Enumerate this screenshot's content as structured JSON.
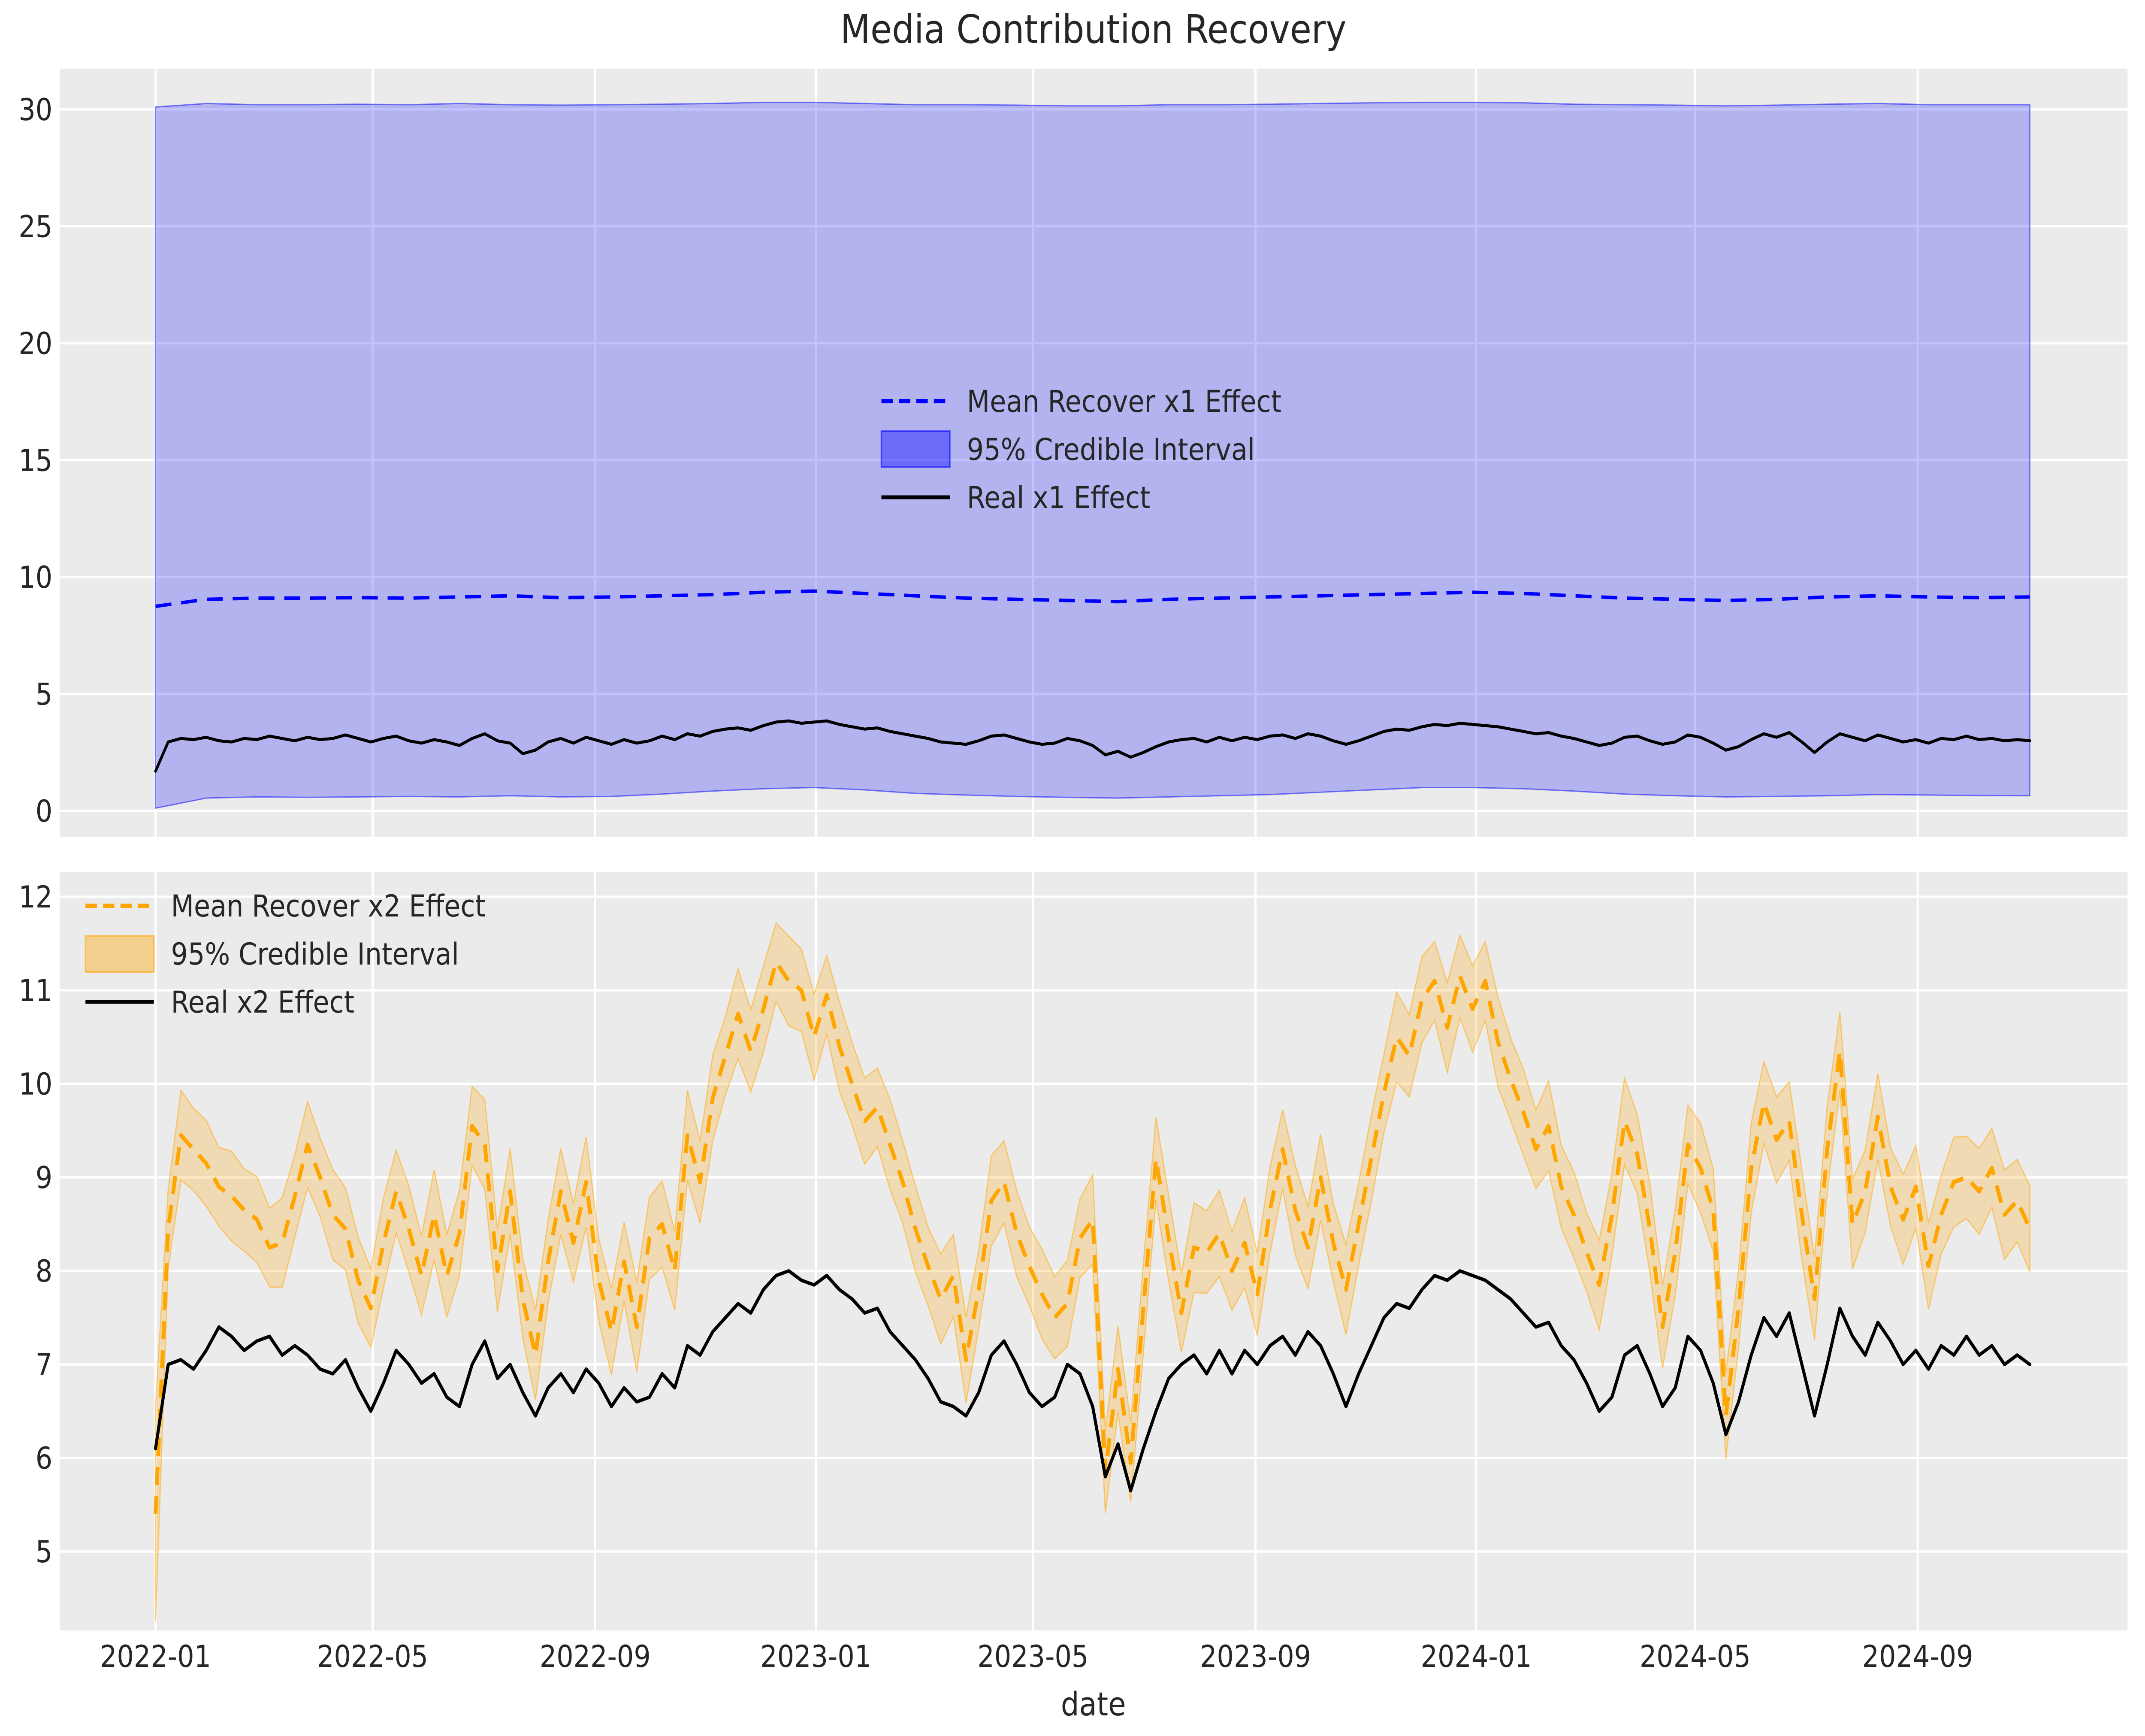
{
  "title": "Media Contribution Recovery",
  "xlabel": "date",
  "colors": {
    "figure_bg": "#ffffff",
    "axes_bg": "#ebebeb",
    "grid": "#ffffff",
    "text": "#262626",
    "x1_accent": "#0000ff",
    "x2_accent": "#ffa500",
    "real_line": "#000000"
  },
  "x_axis": {
    "tick_days": [
      0,
      120,
      243,
      365,
      485,
      608,
      730,
      851,
      974
    ],
    "tick_labels": [
      "2022-01",
      "2022-05",
      "2022-09",
      "2023-01",
      "2023-05",
      "2023-09",
      "2024-01",
      "2024-05",
      "2024-09"
    ],
    "start_date": "2022-01-01",
    "end_date": "2024-11-02"
  },
  "chart_data": [
    {
      "type": "line",
      "panel": "top",
      "ylim": [
        -1.1,
        31.74
      ],
      "y_ticks": [
        0,
        5,
        10,
        15,
        20,
        25,
        30
      ],
      "y_tick_labels": [
        "0",
        "5",
        "10",
        "15",
        "20",
        "25",
        "30"
      ],
      "grid": true,
      "legend_position": "center",
      "legend": [
        {
          "label": "Mean Recover x1 Effect",
          "style": "dashed",
          "color": "#0000ff"
        },
        {
          "label": "95% Credible Interval",
          "style": "patch",
          "color": "#0000ff"
        },
        {
          "label": "Real x1 Effect",
          "style": "solid",
          "color": "#000000"
        }
      ],
      "series": [
        {
          "name": "Mean Recover x1 Effect",
          "role": "mean",
          "style": "dashed",
          "color": "#0000ff",
          "start_day": 0,
          "step_days": 28,
          "values": [
            8.75,
            9.05,
            9.1,
            9.1,
            9.12,
            9.1,
            9.15,
            9.2,
            9.12,
            9.15,
            9.2,
            9.25,
            9.35,
            9.4,
            9.3,
            9.2,
            9.1,
            9.05,
            9.0,
            8.95,
            9.05,
            9.1,
            9.15,
            9.2,
            9.25,
            9.3,
            9.35,
            9.3,
            9.2,
            9.1,
            9.05,
            9.0,
            9.05,
            9.15,
            9.2,
            9.15,
            9.12,
            9.15
          ]
        },
        {
          "name": "95% Credible Interval upper",
          "role": "band_upper",
          "start_day": 0,
          "step_days": 28,
          "values": [
            30.1,
            30.25,
            30.2,
            30.2,
            30.22,
            30.2,
            30.25,
            30.2,
            30.18,
            30.2,
            30.22,
            30.25,
            30.3,
            30.3,
            30.25,
            30.2,
            30.2,
            30.18,
            30.15,
            30.15,
            30.2,
            30.2,
            30.22,
            30.25,
            30.28,
            30.3,
            30.3,
            30.28,
            30.22,
            30.2,
            30.18,
            30.15,
            30.18,
            30.22,
            30.25,
            30.2,
            30.2,
            30.2
          ]
        },
        {
          "name": "95% Credible Interval lower",
          "role": "band_lower",
          "start_day": 0,
          "step_days": 28,
          "values": [
            0.12,
            0.55,
            0.6,
            0.58,
            0.6,
            0.62,
            0.6,
            0.65,
            0.6,
            0.62,
            0.72,
            0.85,
            0.95,
            1.0,
            0.9,
            0.75,
            0.68,
            0.62,
            0.58,
            0.55,
            0.6,
            0.65,
            0.7,
            0.8,
            0.9,
            1.0,
            1.0,
            0.95,
            0.85,
            0.72,
            0.65,
            0.6,
            0.62,
            0.65,
            0.7,
            0.68,
            0.66,
            0.65
          ]
        },
        {
          "name": "Real x1 Effect",
          "role": "real",
          "style": "solid",
          "color": "#000000",
          "start_day": 0,
          "step_days": 7,
          "values": [
            1.7,
            2.95,
            3.1,
            3.05,
            3.15,
            3.0,
            2.95,
            3.1,
            3.05,
            3.2,
            3.1,
            3.0,
            3.15,
            3.05,
            3.1,
            3.25,
            3.1,
            2.95,
            3.1,
            3.2,
            3.0,
            2.9,
            3.05,
            2.95,
            2.8,
            3.1,
            3.3,
            3.0,
            2.9,
            2.45,
            2.6,
            2.95,
            3.1,
            2.9,
            3.15,
            3.0,
            2.85,
            3.05,
            2.9,
            3.0,
            3.2,
            3.05,
            3.3,
            3.2,
            3.4,
            3.5,
            3.55,
            3.45,
            3.65,
            3.8,
            3.85,
            3.75,
            3.8,
            3.85,
            3.7,
            3.6,
            3.5,
            3.55,
            3.4,
            3.3,
            3.2,
            3.1,
            2.95,
            2.9,
            2.85,
            3.0,
            3.2,
            3.25,
            3.1,
            2.95,
            2.85,
            2.9,
            3.1,
            3.0,
            2.8,
            2.4,
            2.55,
            2.3,
            2.5,
            2.75,
            2.95,
            3.05,
            3.1,
            2.95,
            3.15,
            3.0,
            3.15,
            3.05,
            3.2,
            3.25,
            3.1,
            3.3,
            3.2,
            3.0,
            2.85,
            3.0,
            3.2,
            3.4,
            3.5,
            3.45,
            3.6,
            3.7,
            3.65,
            3.75,
            3.7,
            3.65,
            3.6,
            3.5,
            3.4,
            3.3,
            3.35,
            3.2,
            3.1,
            2.95,
            2.8,
            2.9,
            3.15,
            3.2,
            3.0,
            2.85,
            2.95,
            3.25,
            3.15,
            2.9,
            2.6,
            2.75,
            3.05,
            3.3,
            3.15,
            3.35,
            2.95,
            2.5,
            2.95,
            3.3,
            3.15,
            3.0,
            3.25,
            3.1,
            2.95,
            3.05,
            2.9,
            3.1,
            3.05,
            3.2,
            3.05,
            3.1,
            3.0,
            3.05,
            3.0
          ]
        }
      ]
    },
    {
      "type": "line",
      "panel": "bottom",
      "ylim": [
        4.156,
        12.266
      ],
      "y_ticks": [
        5,
        6,
        7,
        8,
        9,
        10,
        11,
        12
      ],
      "y_tick_labels": [
        "5",
        "6",
        "7",
        "8",
        "9",
        "10",
        "11",
        "12"
      ],
      "grid": true,
      "legend_position": "upper left",
      "legend": [
        {
          "label": "Mean Recover x2 Effect",
          "style": "dashed",
          "color": "#ffa500"
        },
        {
          "label": "95% Credible Interval",
          "style": "patch",
          "color": "#ffa500"
        },
        {
          "label": "Real x2 Effect",
          "style": "solid",
          "color": "#000000"
        }
      ],
      "series": [
        {
          "name": "Mean Recover x2 Effect",
          "role": "mean",
          "style": "dashed",
          "color": "#ffa500",
          "start_day": 0,
          "step_days": 7,
          "values": [
            5.4,
            8.45,
            9.45,
            9.3,
            9.15,
            8.9,
            8.8,
            8.65,
            8.55,
            8.25,
            8.3,
            8.8,
            9.35,
            9.0,
            8.6,
            8.45,
            7.9,
            7.6,
            8.3,
            8.85,
            8.45,
            7.95,
            8.6,
            7.95,
            8.4,
            9.55,
            9.35,
            8.0,
            8.85,
            7.7,
            7.1,
            8.1,
            8.85,
            8.3,
            8.95,
            7.9,
            7.35,
            8.1,
            7.4,
            8.35,
            8.5,
            8.0,
            9.45,
            8.95,
            9.85,
            10.3,
            10.75,
            10.35,
            10.8,
            11.3,
            11.1,
            11.0,
            10.5,
            10.95,
            10.4,
            10.0,
            9.6,
            9.75,
            9.35,
            8.95,
            8.45,
            8.05,
            7.7,
            7.95,
            7.05,
            7.8,
            8.75,
            8.95,
            8.4,
            8.05,
            7.75,
            7.5,
            7.65,
            8.35,
            8.55,
            5.85,
            6.95,
            5.95,
            7.6,
            9.2,
            8.35,
            7.55,
            8.25,
            8.2,
            8.4,
            8.0,
            8.3,
            7.75,
            8.65,
            9.3,
            8.65,
            8.25,
            9.0,
            8.3,
            7.8,
            8.5,
            9.2,
            9.9,
            10.5,
            10.3,
            10.9,
            11.1,
            10.6,
            11.15,
            10.8,
            11.1,
            10.45,
            10.05,
            9.7,
            9.3,
            9.55,
            8.9,
            8.6,
            8.2,
            7.85,
            8.6,
            9.6,
            9.25,
            8.45,
            7.4,
            8.2,
            9.35,
            9.1,
            8.65,
            6.45,
            7.6,
            9.1,
            9.8,
            9.4,
            9.6,
            8.6,
            7.7,
            9.3,
            10.35,
            8.5,
            8.85,
            9.65,
            8.9,
            8.55,
            8.9,
            8.05,
            8.6,
            8.95,
            9.0,
            8.85,
            9.1,
            8.6,
            8.75,
            8.45
          ]
        },
        {
          "name": "95% Credible Interval halfwidth",
          "role": "band_halfwidth",
          "start_day": 0,
          "step_days": 7,
          "first": 1.15,
          "cycle": [
            0.46,
            0.42,
            0.48,
            0.44
          ]
        },
        {
          "name": "Real x2 Effect",
          "role": "real",
          "style": "solid",
          "color": "#000000",
          "start_day": 0,
          "step_days": 7,
          "values": [
            6.1,
            7.0,
            7.05,
            6.95,
            7.15,
            7.4,
            7.3,
            7.15,
            7.25,
            7.3,
            7.1,
            7.2,
            7.1,
            6.95,
            6.9,
            7.05,
            6.75,
            6.5,
            6.8,
            7.15,
            7.0,
            6.8,
            6.9,
            6.65,
            6.55,
            7.0,
            7.25,
            6.85,
            7.0,
            6.7,
            6.45,
            6.75,
            6.9,
            6.7,
            6.95,
            6.8,
            6.55,
            6.75,
            6.6,
            6.65,
            6.9,
            6.75,
            7.2,
            7.1,
            7.35,
            7.5,
            7.65,
            7.55,
            7.8,
            7.95,
            8.0,
            7.9,
            7.85,
            7.95,
            7.8,
            7.7,
            7.55,
            7.6,
            7.35,
            7.2,
            7.05,
            6.85,
            6.6,
            6.55,
            6.45,
            6.7,
            7.1,
            7.25,
            7.0,
            6.7,
            6.55,
            6.65,
            7.0,
            6.9,
            6.55,
            5.8,
            6.15,
            5.65,
            6.1,
            6.5,
            6.85,
            7.0,
            7.1,
            6.9,
            7.15,
            6.9,
            7.15,
            7.0,
            7.2,
            7.3,
            7.1,
            7.35,
            7.2,
            6.9,
            6.55,
            6.9,
            7.2,
            7.5,
            7.65,
            7.6,
            7.8,
            7.95,
            7.9,
            8.0,
            7.95,
            7.9,
            7.8,
            7.7,
            7.55,
            7.4,
            7.45,
            7.2,
            7.05,
            6.8,
            6.5,
            6.65,
            7.1,
            7.2,
            6.9,
            6.55,
            6.75,
            7.3,
            7.15,
            6.8,
            6.25,
            6.6,
            7.1,
            7.5,
            7.3,
            7.55,
            7.0,
            6.45,
            7.0,
            7.6,
            7.3,
            7.1,
            7.45,
            7.25,
            7.0,
            7.15,
            6.95,
            7.2,
            7.1,
            7.3,
            7.1,
            7.2,
            7.0,
            7.1,
            7.0
          ]
        }
      ]
    }
  ]
}
